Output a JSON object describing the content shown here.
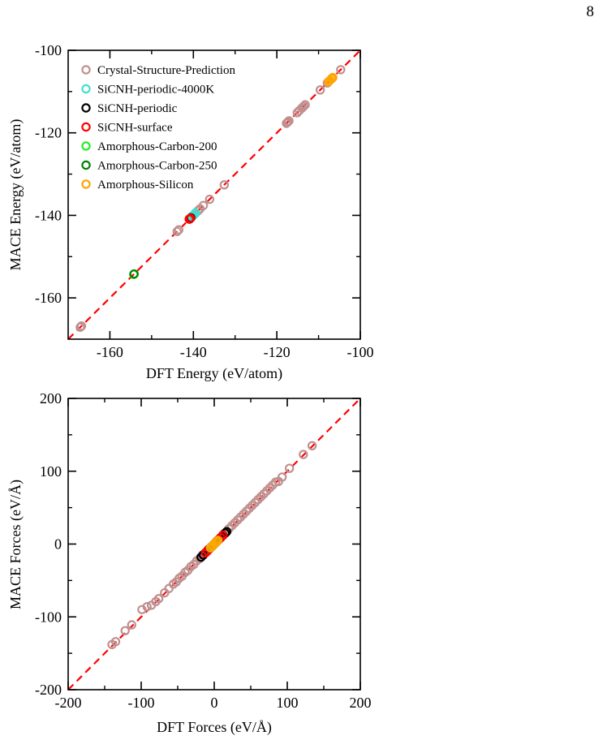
{
  "page_number": "8",
  "colors": {
    "crystal": "#c09090",
    "sicnh_4000k": "#40e0d0",
    "sicnh_periodic": "#000000",
    "sicnh_surface": "#ff0000",
    "carbon_200": "#22ee22",
    "carbon_250": "#008000",
    "silicon": "#ffa500",
    "parity_line": "#ff0000"
  },
  "legend": {
    "placement": "top-left",
    "entries": [
      "Crystal-Structure-Prediction",
      "SiCNH-periodic-4000K",
      "SiCNH-periodic",
      "SiCNH-surface",
      "Amorphous-Carbon-200",
      "Amorphous-Carbon-250",
      "Amorphous-Silicon"
    ]
  },
  "chart_data": [
    {
      "type": "scatter",
      "xlabel": "DFT Energy (eV/atom)",
      "ylabel": "MACE Energy (eV/atom)",
      "xlim": [
        -170,
        -100
      ],
      "ylim": [
        -170,
        -100
      ],
      "xticks": [
        -160,
        -140,
        -120,
        -100
      ],
      "yticks": [
        -160,
        -140,
        -120,
        -100
      ],
      "xtick_labels": [
        "-160",
        "-140",
        "-120",
        "-100"
      ],
      "ytick_labels": [
        "-160",
        "-140",
        "-120",
        "-100"
      ],
      "parity_line": true,
      "grid": false,
      "series": [
        {
          "name": "Crystal-Structure-Prediction",
          "x": [
            -167.1,
            -166.8,
            -143.9,
            -143.5,
            -139.5,
            -138.9,
            -138.4,
            -137.6,
            -136.1,
            -132.6,
            -117.7,
            -117.4,
            -117.1,
            -115.1,
            -114.6,
            -114.0,
            -113.6,
            -113.2,
            -109.6,
            -107.9,
            -104.7
          ],
          "y": [
            -167.1,
            -166.8,
            -143.9,
            -143.5,
            -139.5,
            -138.9,
            -138.4,
            -137.6,
            -136.1,
            -132.6,
            -117.7,
            -117.4,
            -117.1,
            -115.1,
            -114.6,
            -114.0,
            -113.6,
            -113.2,
            -109.6,
            -107.9,
            -104.7
          ]
        },
        {
          "name": "SiCNH-periodic-4000K",
          "x": [
            -140.3,
            -139.9,
            -139.5
          ],
          "y": [
            -140.2,
            -139.9,
            -139.4
          ]
        },
        {
          "name": "SiCNH-periodic",
          "x": [
            -140.9,
            -140.6
          ],
          "y": [
            -140.9,
            -140.6
          ]
        },
        {
          "name": "SiCNH-surface",
          "x": [
            -141.0,
            -140.7
          ],
          "y": [
            -140.9,
            -140.7
          ]
        },
        {
          "name": "Amorphous-Carbon-200",
          "x": [
            -154.3
          ],
          "y": [
            -154.3
          ]
        },
        {
          "name": "Amorphous-Carbon-250",
          "x": [
            -154.2
          ],
          "y": [
            -154.2
          ]
        },
        {
          "name": "Amorphous-Silicon",
          "x": [
            -107.6,
            -107.3,
            -106.9,
            -106.6
          ],
          "y": [
            -107.6,
            -107.3,
            -106.9,
            -106.6
          ]
        }
      ]
    },
    {
      "type": "scatter",
      "xlabel": "DFT Forces (eV/Å)",
      "ylabel": "MACE Forces (eV/Å)",
      "xlim": [
        -200,
        200
      ],
      "ylim": [
        -200,
        200
      ],
      "xticks": [
        -200,
        -100,
        0,
        100,
        200
      ],
      "yticks": [
        -200,
        -100,
        0,
        100,
        200
      ],
      "xtick_labels": [
        "-200",
        "-100",
        "0",
        "100",
        "200"
      ],
      "ytick_labels": [
        "-200",
        "-100",
        "0",
        "100",
        "200"
      ],
      "parity_line": true,
      "grid": false,
      "series": [
        {
          "name": "Crystal-Structure-Prediction",
          "x": [
            -140,
            -135,
            -122,
            -113,
            -99,
            -92,
            -86,
            -80,
            -76,
            -68,
            -62,
            -56,
            -52,
            -48,
            -44,
            -40,
            -36,
            -32,
            -28,
            -24,
            -20,
            -16,
            -12,
            -8,
            -4,
            4,
            8,
            12,
            16,
            20,
            24,
            28,
            32,
            36,
            40,
            44,
            48,
            52,
            56,
            60,
            64,
            68,
            72,
            76,
            80,
            84,
            88,
            93,
            103,
            122,
            134
          ],
          "y": [
            -138,
            -134,
            -119,
            -111,
            -90,
            -86,
            -84,
            -79,
            -75,
            -67,
            -61,
            -55,
            -52,
            -47,
            -44,
            -39,
            -36,
            -31,
            -28,
            -23,
            -20,
            -15,
            -12,
            -7,
            -4,
            5,
            8,
            13,
            16,
            21,
            25,
            29,
            33,
            37,
            41,
            45,
            49,
            53,
            57,
            61,
            65,
            69,
            73,
            77,
            81,
            85,
            86,
            92,
            104,
            123,
            135
          ]
        },
        {
          "name": "SiCNH-periodic-4000K",
          "x": [
            -10,
            -7,
            -4,
            -1,
            2,
            5,
            8
          ],
          "y": [
            -10,
            -7,
            -4,
            -1,
            2,
            5,
            8
          ]
        },
        {
          "name": "SiCNH-periodic",
          "x": [
            -18,
            -15,
            -12,
            -9,
            -6,
            -3,
            0,
            3,
            6,
            9,
            12,
            15,
            17
          ],
          "y": [
            -18,
            -15,
            -12,
            -9,
            -6,
            -3,
            0,
            3,
            6,
            9,
            12,
            15,
            17
          ]
        },
        {
          "name": "SiCNH-surface",
          "x": [
            -12,
            -9,
            -6,
            -3,
            0,
            3,
            6,
            9,
            12
          ],
          "y": [
            -12,
            -9,
            -6,
            -3,
            0,
            3,
            6,
            9,
            12
          ]
        },
        {
          "name": "Amorphous-Carbon-200",
          "x": [
            -5,
            -2,
            1,
            4
          ],
          "y": [
            -5,
            -2,
            1,
            4
          ]
        },
        {
          "name": "Amorphous-Carbon-250",
          "x": [
            -4,
            -1,
            2
          ],
          "y": [
            -4,
            -1,
            2
          ]
        },
        {
          "name": "Amorphous-Silicon",
          "x": [
            -5,
            -3,
            -1,
            1,
            3,
            5
          ],
          "y": [
            -5,
            -3,
            -1,
            1,
            3,
            5
          ]
        }
      ]
    }
  ]
}
